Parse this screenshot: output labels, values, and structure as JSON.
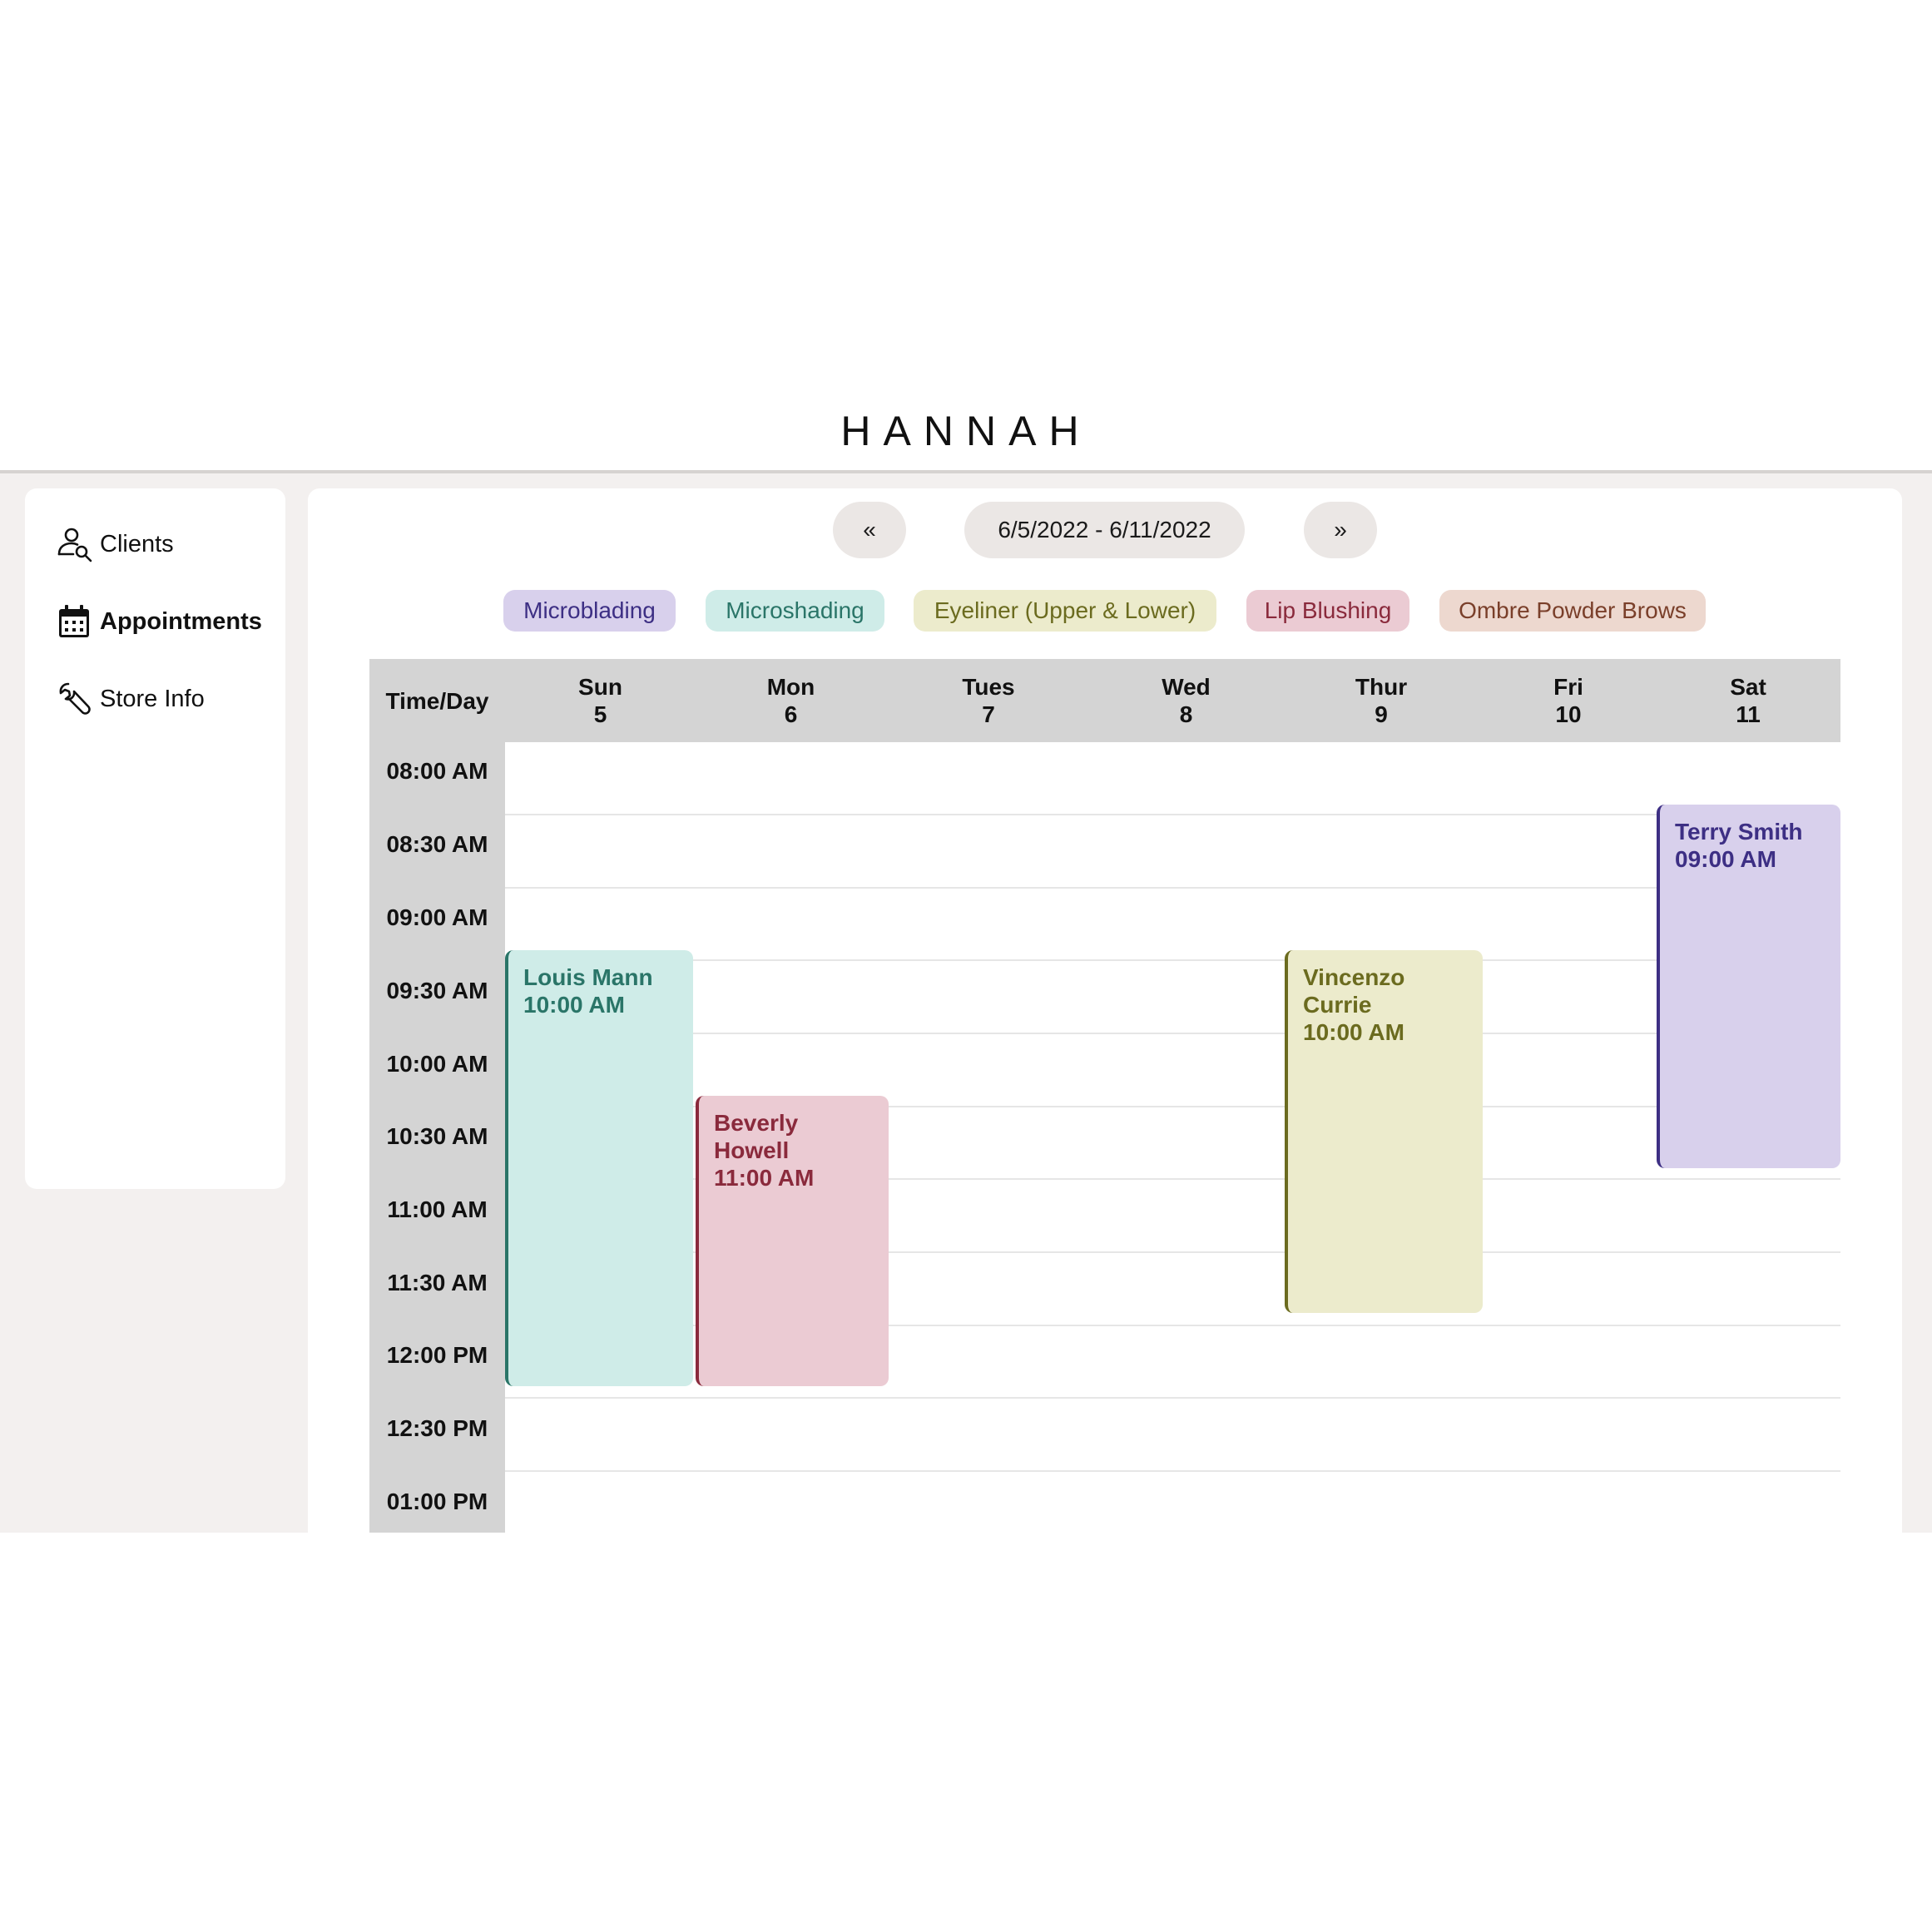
{
  "header": {
    "brand": "HANNAH"
  },
  "sidebar": {
    "items": [
      {
        "label": "Clients",
        "icon": "user-search-icon",
        "active": false
      },
      {
        "label": "Appointments",
        "icon": "calendar-icon",
        "active": true
      },
      {
        "label": "Store Info",
        "icon": "wrench-icon",
        "active": false
      }
    ]
  },
  "toolbar": {
    "prev_label": "«",
    "range_label": "6/5/2022 - 6/11/2022",
    "next_label": "»"
  },
  "legend": [
    {
      "label": "Microblading",
      "bg": "#d8d0ec",
      "fg": "#3d2f84"
    },
    {
      "label": "Microshading",
      "bg": "#cfece8",
      "fg": "#2a7568"
    },
    {
      "label": "Eyeliner (Upper & Lower)",
      "bg": "#ecebcc",
      "fg": "#6b6b1f"
    },
    {
      "label": "Lip Blushing",
      "bg": "#ebcbd3",
      "fg": "#8a2a3c"
    },
    {
      "label": "Ombre Powder Brows",
      "bg": "#edd8cf",
      "fg": "#7a3f2a"
    }
  ],
  "calendar": {
    "corner_label": "Time/Day",
    "days": [
      {
        "name": "Sun",
        "date": "5"
      },
      {
        "name": "Mon",
        "date": "6"
      },
      {
        "name": "Tues",
        "date": "7"
      },
      {
        "name": "Wed",
        "date": "8"
      },
      {
        "name": "Thur",
        "date": "9"
      },
      {
        "name": "Fri",
        "date": "10"
      },
      {
        "name": "Sat",
        "date": "11"
      }
    ],
    "times": [
      "08:00 AM",
      "08:30 AM",
      "09:00 AM",
      "09:30 AM",
      "10:00 AM",
      "10:30 AM",
      "11:00 AM",
      "11:30 AM",
      "12:00 PM",
      "12:30 PM",
      "01:00 PM"
    ],
    "appointments": [
      {
        "client": "Louis Mann",
        "time": "10:00 AM",
        "day": "Sun",
        "start": "10:00 AM",
        "end": "01:00 PM",
        "service": "Microshading",
        "bg": "#cfece8",
        "fg": "#2a7568",
        "border": "#2a7568"
      },
      {
        "client": "Beverly Howell",
        "time": "11:00 AM",
        "day": "Mon",
        "start": "11:00 AM",
        "end": "01:00 PM",
        "service": "Lip Blushing",
        "bg": "#ebcbd3",
        "fg": "#8a2a3c",
        "border": "#8a2a3c"
      },
      {
        "client": "Vincenzo Currie",
        "time": "10:00 AM",
        "day": "Thur",
        "start": "10:00 AM",
        "end": "12:30 PM",
        "service": "Eyeliner (Upper & Lower)",
        "bg": "#ecebcc",
        "fg": "#6b6b1f",
        "border": "#6b6b1f"
      },
      {
        "client": "Terry Smith",
        "time": "09:00 AM",
        "day": "Sat",
        "start": "09:00 AM",
        "end": "11:30 AM",
        "service": "Microblading",
        "bg": "#d8d0ec",
        "fg": "#3d2f84",
        "border": "#3d2f84"
      }
    ]
  }
}
